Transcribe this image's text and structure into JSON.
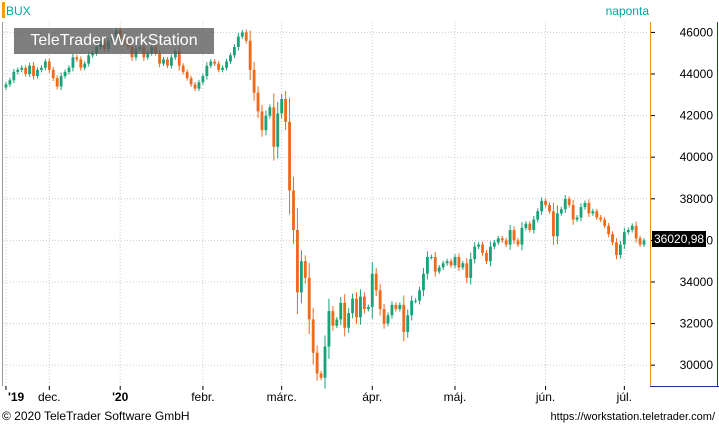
{
  "symbol": "BUX",
  "period": "naponta",
  "watermark": "TeleTrader WorkStation",
  "last_price_label": "36020,98",
  "footer": {
    "copyright": "© 2020 TeleTrader Software GmbH",
    "url": "https://workstation.teletrader.com/"
  },
  "colors": {
    "up": "#1aa37a",
    "down": "#f06a1c",
    "grid": "#cccccc",
    "accent": "#f0a000"
  },
  "chart_data": {
    "type": "candlestick",
    "title": "BUX",
    "ylim": [
      29000,
      46500
    ],
    "y_ticks": [
      30000,
      32000,
      34000,
      36000,
      38000,
      40000,
      42000,
      44000,
      46000
    ],
    "y_tick_labels": [
      "30000",
      "32000",
      "34000",
      "36000",
      "38000",
      "40000",
      "42000",
      "44000",
      "46000"
    ],
    "x_labels": [
      "'19",
      "dec.",
      "'20",
      "febr.",
      "márc.",
      "ápr.",
      "máj.",
      "jún.",
      "júl."
    ],
    "x_label_index": [
      0,
      11,
      29,
      50,
      70,
      93,
      114,
      137,
      157
    ],
    "series": [
      {
        "close": [
          43500,
          43700,
          44100,
          44200,
          44300,
          44000,
          44400,
          43900,
          44200,
          44300,
          44600,
          44200,
          43800,
          43400,
          43900,
          44100,
          44300,
          44800,
          44700,
          44300,
          44500,
          44900,
          45000,
          45300,
          45500,
          45200,
          45600,
          45800,
          46100,
          45700,
          45500,
          45300,
          44800,
          45200,
          45300,
          44800,
          45000,
          45300,
          45000,
          44500,
          44700,
          44400,
          44800,
          45100,
          44400,
          44100,
          43800,
          43500,
          43300,
          43600,
          43900,
          44400,
          44600,
          44500,
          44200,
          44300,
          44600,
          44900,
          45300,
          45800,
          46000,
          45600,
          44200,
          43100,
          42200,
          41300,
          42000,
          42400,
          40500,
          42100,
          42800,
          41700,
          38400,
          36500,
          33500,
          35000,
          34200,
          32200,
          30600,
          29600,
          29400,
          30900,
          32600,
          31900,
          32200,
          33000,
          31800,
          32500,
          33200,
          32300,
          33300,
          32700,
          32800,
          34400,
          33600,
          32700,
          32000,
          32400,
          32900,
          32700,
          32900,
          31600,
          32400,
          33100,
          33100,
          33600,
          34400,
          35200,
          35200,
          34500,
          34700,
          34900,
          35000,
          34800,
          35200,
          34700,
          34900,
          34200,
          35100,
          35700,
          35800,
          35400,
          35000,
          35700,
          35900,
          36100,
          36000,
          35800,
          36500,
          36000,
          35800,
          36600,
          36800,
          36500,
          37000,
          37400,
          37900,
          37700,
          37400,
          36200,
          37300,
          37500,
          38000,
          37700,
          37000,
          37100,
          37600,
          37800,
          37300,
          37400,
          37100,
          37000,
          36700,
          36300,
          35900,
          35300,
          35800,
          36400,
          36500,
          36700,
          36100,
          35800,
          36000
        ]
      }
    ]
  }
}
